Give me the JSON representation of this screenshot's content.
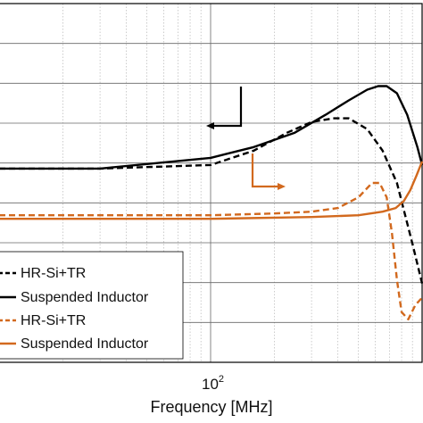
{
  "chart_data": {
    "type": "line",
    "title": "",
    "xlabel": "Frequency [MHz]",
    "ylabel": "",
    "x_scale": "log",
    "xlim": [
      10,
      1000
    ],
    "x_tick_label_base": "10",
    "x_tick_label_exp": "2",
    "grid": true,
    "legend_position": "bottom-left",
    "colors": {
      "black": "#000000",
      "orange": "#d2691e"
    },
    "series": [
      {
        "name": "HR-Si+TR",
        "color": "#000000",
        "dash": "dashed",
        "x": [
          10,
          30,
          100,
          160,
          230,
          300,
          380,
          450,
          550,
          650,
          760,
          900,
          1000
        ],
        "y": [
          0.54,
          0.54,
          0.55,
          0.59,
          0.64,
          0.67,
          0.68,
          0.68,
          0.65,
          0.59,
          0.5,
          0.33,
          0.22
        ]
      },
      {
        "name": "Suspended Inductor",
        "color": "#000000",
        "dash": "solid",
        "x": [
          10,
          30,
          100,
          160,
          250,
          350,
          450,
          550,
          620,
          680,
          760,
          850,
          950,
          1000
        ],
        "y": [
          0.54,
          0.54,
          0.57,
          0.6,
          0.64,
          0.69,
          0.73,
          0.76,
          0.77,
          0.77,
          0.75,
          0.69,
          0.6,
          0.55
        ]
      },
      {
        "name": "HR-Si+TR",
        "color": "#d2691e",
        "dash": "dashed",
        "x": [
          10,
          100,
          200,
          300,
          400,
          500,
          580,
          630,
          680,
          720,
          760,
          800,
          860,
          930,
          1000
        ],
        "y": [
          0.41,
          0.41,
          0.415,
          0.42,
          0.43,
          0.46,
          0.5,
          0.5,
          0.46,
          0.36,
          0.23,
          0.14,
          0.12,
          0.16,
          0.18
        ]
      },
      {
        "name": "Suspended Inductor",
        "color": "#d2691e",
        "dash": "solid",
        "x": [
          10,
          100,
          300,
          500,
          650,
          750,
          820,
          880,
          940,
          1000
        ],
        "y": [
          0.4,
          0.4,
          0.405,
          0.41,
          0.42,
          0.43,
          0.45,
          0.48,
          0.52,
          0.56
        ]
      }
    ],
    "legend": [
      {
        "label": "HR-Si+TR",
        "color": "#000000",
        "dash": "dashed"
      },
      {
        "label": "Suspended Inductor",
        "color": "#000000",
        "dash": "solid"
      },
      {
        "label": "HR-Si+TR",
        "color": "#d2691e",
        "dash": "dashed"
      },
      {
        "label": "Suspended Inductor",
        "color": "#d2691e",
        "dash": "solid"
      }
    ],
    "annotations": [
      {
        "name": "left-axis-arrow",
        "color": "#000000",
        "direction": "left"
      },
      {
        "name": "right-axis-arrow",
        "color": "#d2691e",
        "direction": "right"
      }
    ]
  }
}
